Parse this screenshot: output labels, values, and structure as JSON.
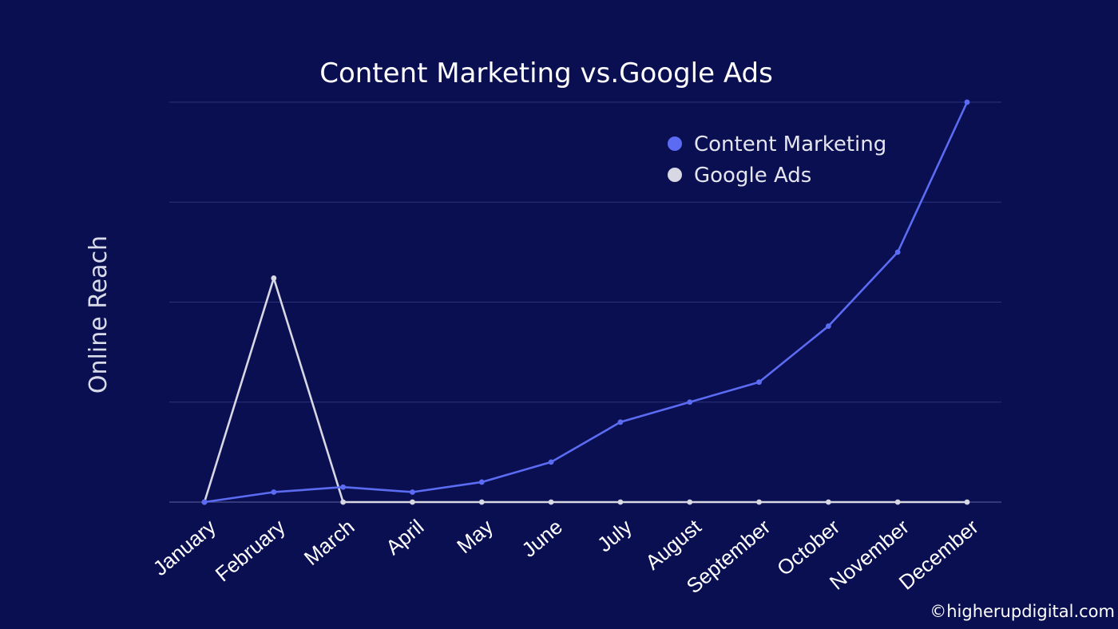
{
  "chart_data": {
    "type": "line",
    "title": "Content Marketing vs.Google Ads",
    "xlabel": "",
    "ylabel": "Online Reach",
    "categories": [
      "January",
      "February",
      "March",
      "April",
      "May",
      "June",
      "July",
      "August",
      "September",
      "October",
      "November",
      "December"
    ],
    "ylim": [
      0,
      100
    ],
    "grid": true,
    "legend_position": "top-right",
    "series": [
      {
        "name": "Content Marketing",
        "color": "#5b6cf2",
        "values": [
          0,
          2.5,
          3.75,
          2.5,
          5,
          10,
          20,
          25,
          30,
          44,
          62.5,
          100
        ]
      },
      {
        "name": "Google Ads",
        "color": "#d7d8e3",
        "values": [
          0,
          56,
          0,
          0,
          0,
          0,
          0,
          0,
          0,
          0,
          0,
          0
        ]
      }
    ]
  },
  "footer": {
    "credit": "©higherupdigital.com"
  },
  "colors": {
    "background": "#0a0f52",
    "grid": "#2b3278"
  }
}
